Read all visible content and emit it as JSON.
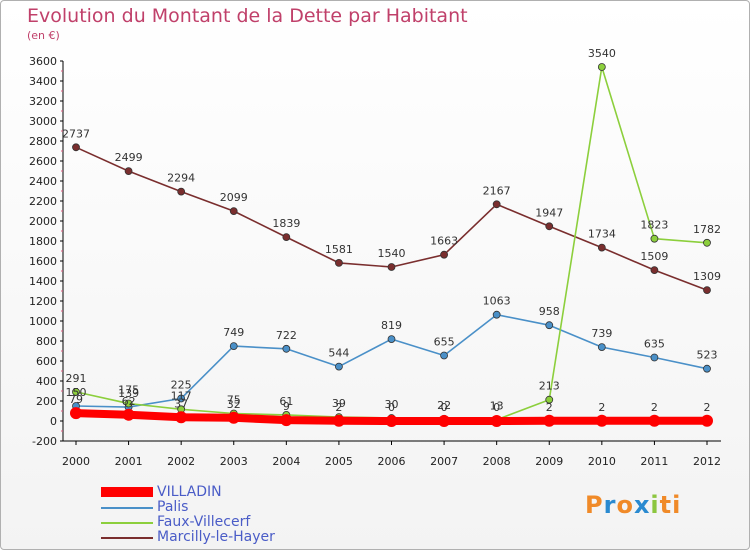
{
  "title": "Evolution du Montant de la Dette par Habitant",
  "subtitle": "(en €)",
  "logo": {
    "letters": [
      "P",
      "r",
      "o",
      "x",
      "i",
      "ti"
    ]
  },
  "chart_data": {
    "type": "line",
    "x": [
      "2000",
      "2001",
      "2002",
      "2003",
      "2004",
      "2005",
      "2006",
      "2007",
      "2008",
      "2009",
      "2010",
      "2011",
      "2012"
    ],
    "ylim": [
      -200,
      3600
    ],
    "yticks": [
      -200,
      0,
      200,
      400,
      600,
      800,
      1000,
      1200,
      1400,
      1600,
      1800,
      2000,
      2200,
      2400,
      2600,
      2800,
      3000,
      3200,
      3400,
      3600
    ],
    "grid": false,
    "legend_position": "bottom-left",
    "series": [
      {
        "name": "VILLADIN",
        "color": "#ff0000",
        "values": [
          79,
          62,
          37,
          32,
          9,
          2,
          0,
          0,
          0,
          2,
          2,
          2,
          2
        ],
        "labels": [
          "79",
          "62",
          "37",
          "32",
          "9",
          "2",
          "0",
          "0",
          "0",
          "2",
          "2",
          "2",
          "2"
        ]
      },
      {
        "name": "Palis",
        "color": "#4a90c8",
        "values": [
          150,
          139,
          225,
          749,
          722,
          544,
          819,
          655,
          1063,
          958,
          739,
          635,
          523
        ],
        "labels": [
          "150",
          "139",
          "225",
          "749",
          "722",
          "544",
          "819",
          "655",
          "1063",
          "958",
          "739",
          "635",
          "523"
        ]
      },
      {
        "name": "Faux-Villecerf",
        "color": "#8ccf3c",
        "values": [
          291,
          175,
          117,
          75,
          61,
          39,
          30,
          22,
          13,
          213,
          3540,
          1823,
          1782
        ],
        "labels": [
          "291",
          "175",
          "117",
          "75",
          "61",
          "39",
          "30",
          "22",
          "13",
          "213",
          "3540",
          "1823",
          "1782"
        ]
      },
      {
        "name": "Marcilly-le-Hayer",
        "color": "#7a2e2e",
        "values": [
          2737,
          2499,
          2294,
          2099,
          1839,
          1581,
          1540,
          1663,
          2167,
          1947,
          1734,
          1509,
          1309
        ],
        "labels": [
          "2737",
          "2499",
          "2294",
          "2099",
          "1839",
          "1581",
          "1540",
          "1663",
          "2167",
          "1947",
          "1734",
          "1509",
          "1309"
        ]
      }
    ]
  }
}
